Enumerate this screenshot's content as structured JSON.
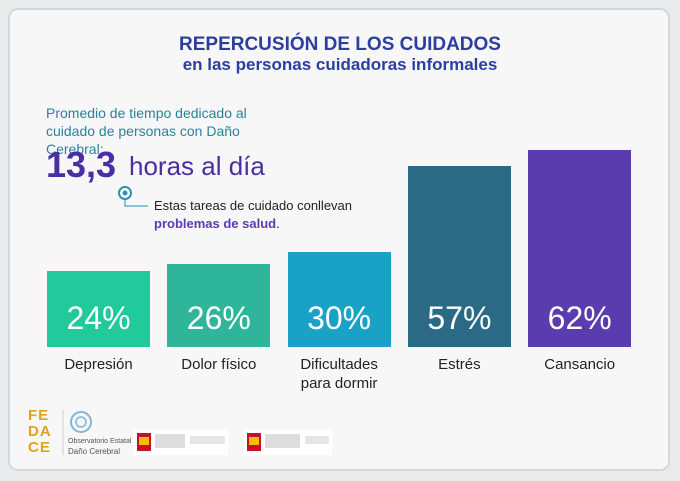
{
  "chart_data": {
    "type": "bar",
    "title": "REPERCUSIÓN DE LOS CUIDADOS",
    "subtitle": "en las personas cuidadoras informales",
    "intro": "Promedio de tiempo dedicado al cuidado de personas con Daño Cerebral:",
    "highlight_value": "13,3",
    "highlight_unit": "horas al día",
    "note": "Estas tareas de cuidado conllevan",
    "note_emphasis": "problemas de salud",
    "note_end": ".",
    "categories": [
      "Depresión",
      "Dolor físico",
      "Dificultades para dormir",
      "Estrés",
      "Cansancio"
    ],
    "values": [
      24,
      26,
      30,
      57,
      62
    ],
    "value_labels": [
      "24%",
      "26%",
      "30%",
      "57%",
      "62%"
    ],
    "colors": [
      "#22c99b",
      "#2fb69a",
      "#19a2c6",
      "#2a6a85",
      "#5a3cae"
    ]
  },
  "footer": {
    "logo": "FEDACE",
    "observatory_line1": "Observatorio Estatal",
    "observatory_line2": "Daño Cerebral"
  }
}
